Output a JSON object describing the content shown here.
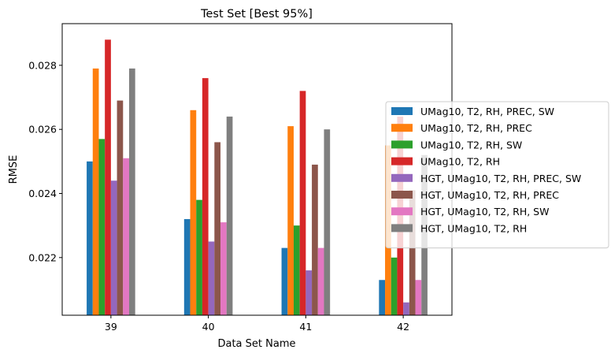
{
  "chart_data": {
    "type": "bar",
    "title": "Test Set [Best 95%]",
    "xlabel": "Data Set Name",
    "ylabel": "RMSE",
    "categories": [
      "39",
      "40",
      "41",
      "42"
    ],
    "ylim": [
      0.0202,
      0.0293
    ],
    "yticks": [
      0.022,
      0.024,
      0.026,
      0.028
    ],
    "ytick_labels": [
      "0.022",
      "0.024",
      "0.026",
      "0.028"
    ],
    "legend_position": "center-right",
    "series": [
      {
        "name": "UMag10, T2, RH, PREC, SW",
        "color": "#1f77b4",
        "values": [
          0.025,
          0.0232,
          0.0223,
          0.0213
        ]
      },
      {
        "name": "UMag10, T2, RH, PREC",
        "color": "#ff7f0e",
        "values": [
          0.0279,
          0.0266,
          0.0261,
          0.0255
        ]
      },
      {
        "name": "UMag10, T2, RH, SW",
        "color": "#2ca02c",
        "values": [
          0.0257,
          0.0238,
          0.023,
          0.022
        ]
      },
      {
        "name": "UMag10, T2, RH",
        "color": "#d62728",
        "values": [
          0.0288,
          0.0276,
          0.0272,
          0.0264
        ]
      },
      {
        "name": "HGT, UMag10, T2, RH, PREC, SW",
        "color": "#9467bd",
        "values": [
          0.0244,
          0.0225,
          0.0216,
          0.0206
        ]
      },
      {
        "name": "HGT, UMag10, T2, RH, PREC",
        "color": "#8c564b",
        "values": [
          0.0269,
          0.0256,
          0.0249,
          0.0241
        ]
      },
      {
        "name": "HGT, UMag10, T2, RH, SW",
        "color": "#e377c2",
        "values": [
          0.0251,
          0.0231,
          0.0223,
          0.0213
        ]
      },
      {
        "name": "HGT, UMag10, T2, RH",
        "color": "#7f7f7f",
        "values": [
          0.0279,
          0.0264,
          0.026,
          0.0252
        ]
      }
    ]
  }
}
